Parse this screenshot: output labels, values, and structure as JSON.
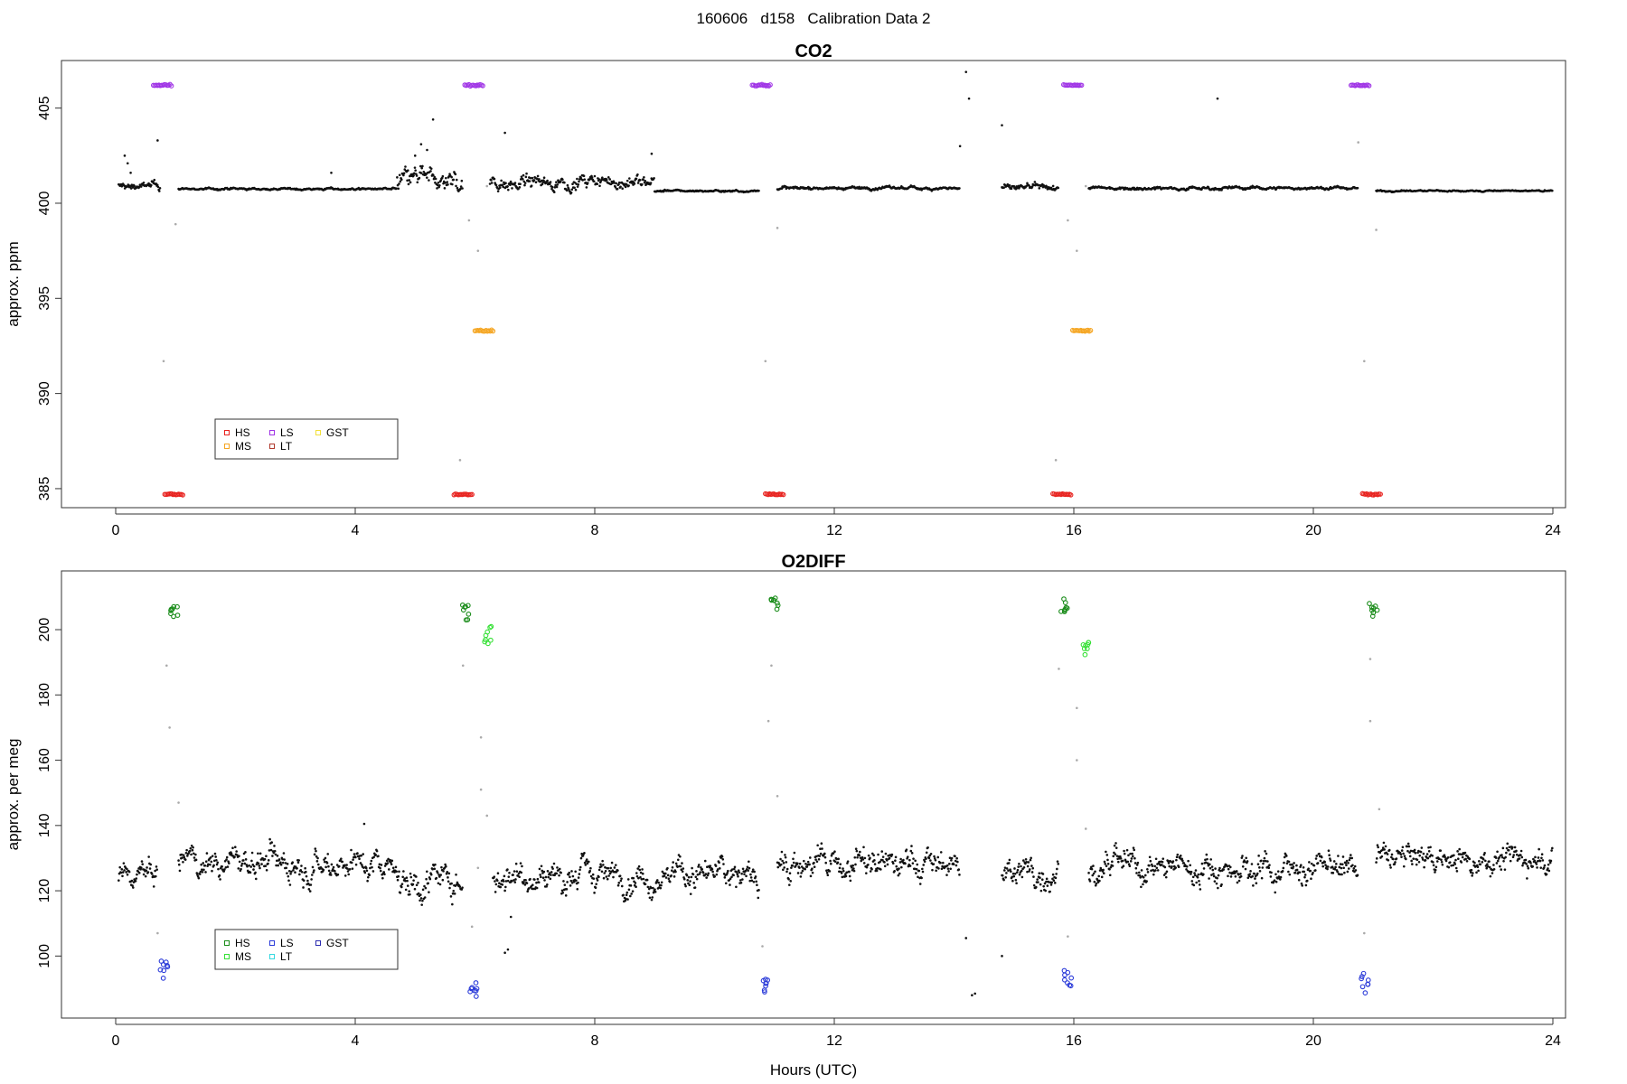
{
  "page": {
    "title": "160606   d158   Calibration Data 2"
  },
  "chart_data": [
    {
      "type": "scatter",
      "title": "CO2",
      "ylabel": "approx. ppm",
      "xlabel": "",
      "xlim": [
        0,
        24
      ],
      "ylim": [
        384,
        407.5
      ],
      "x_ticks": [
        0,
        4,
        8,
        12,
        16,
        20,
        24
      ],
      "y_ticks": [
        385,
        390,
        395,
        400,
        405
      ],
      "grid": false,
      "legend_placement": "bottom-left",
      "legend": [
        {
          "name": "HS",
          "color": "#e8231f"
        },
        {
          "name": "MS",
          "color": "#f5a623"
        },
        {
          "name": "LS",
          "color": "#a035e6"
        },
        {
          "name": "LT",
          "color": "#b03a2e"
        },
        {
          "name": "GST",
          "color": "#f2e03a"
        }
      ],
      "ambient": {
        "color": "#111111",
        "segments": [
          {
            "x": [
              0.05,
              0.75
            ],
            "y": 400.9,
            "noise": 0.2
          },
          {
            "x": [
              1.05,
              4.7
            ],
            "y": 400.75,
            "noise": 0.05
          },
          {
            "x": [
              4.7,
              5.8
            ],
            "y": 401.2,
            "noise": 0.6
          },
          {
            "x": [
              6.25,
              9.0
            ],
            "y": 401.1,
            "noise": 0.35
          },
          {
            "x": [
              9.0,
              10.75
            ],
            "y": 400.65,
            "noise": 0.05
          },
          {
            "x": [
              11.05,
              14.1
            ],
            "y": 400.8,
            "noise": 0.08
          },
          {
            "x": [
              14.8,
              15.75
            ],
            "y": 400.8,
            "noise": 0.15
          },
          {
            "x": [
              16.25,
              20.75
            ],
            "y": 400.8,
            "noise": 0.08
          },
          {
            "x": [
              21.05,
              24.0
            ],
            "y": 400.65,
            "noise": 0.04
          }
        ],
        "outliers": [
          [
            0.15,
            402.5
          ],
          [
            0.2,
            402.1
          ],
          [
            0.25,
            401.6
          ],
          [
            0.7,
            403.3
          ],
          [
            3.6,
            401.6
          ],
          [
            5.0,
            402.5
          ],
          [
            5.1,
            403.1
          ],
          [
            5.2,
            402.8
          ],
          [
            5.3,
            404.4
          ],
          [
            6.5,
            403.7
          ],
          [
            8.95,
            402.6
          ],
          [
            14.1,
            403.0
          ],
          [
            14.2,
            406.9
          ],
          [
            14.25,
            405.5
          ],
          [
            14.8,
            404.1
          ],
          [
            18.4,
            405.5
          ]
        ]
      },
      "transition": {
        "color": "#aaaaaa",
        "points": [
          [
            0.8,
            391.7
          ],
          [
            1.0,
            398.9
          ],
          [
            5.75,
            386.5
          ],
          [
            5.9,
            399.1
          ],
          [
            6.05,
            397.5
          ],
          [
            6.2,
            400.9
          ],
          [
            10.85,
            391.7
          ],
          [
            11.05,
            398.7
          ],
          [
            15.7,
            386.5
          ],
          [
            15.9,
            399.1
          ],
          [
            16.05,
            397.5
          ],
          [
            16.2,
            400.9
          ],
          [
            20.85,
            391.7
          ],
          [
            20.75,
            403.2
          ],
          [
            21.05,
            398.6
          ]
        ]
      },
      "cal_groups": [
        {
          "name": "LS",
          "color": "#a035e6",
          "clusters": [
            {
              "x": 0.78,
              "y": 406.2
            },
            {
              "x": 5.98,
              "y": 406.2
            },
            {
              "x": 10.78,
              "y": 406.2
            },
            {
              "x": 15.98,
              "y": 406.2
            },
            {
              "x": 20.78,
              "y": 406.2
            }
          ]
        },
        {
          "name": "HS",
          "color": "#e8231f",
          "clusters": [
            {
              "x": 0.97,
              "y": 384.7
            },
            {
              "x": 5.8,
              "y": 384.7
            },
            {
              "x": 11.0,
              "y": 384.7
            },
            {
              "x": 15.8,
              "y": 384.7
            },
            {
              "x": 20.97,
              "y": 384.7
            }
          ]
        },
        {
          "name": "MS",
          "color": "#f5a623",
          "clusters": [
            {
              "x": 6.15,
              "y": 393.3
            },
            {
              "x": 16.13,
              "y": 393.3
            }
          ]
        }
      ]
    },
    {
      "type": "scatter",
      "title": "O2DIFF",
      "ylabel": "approx. per meg",
      "xlabel": "Hours (UTC)",
      "xlim": [
        0,
        24
      ],
      "ylim": [
        81,
        218
      ],
      "x_ticks": [
        0,
        4,
        8,
        12,
        16,
        20,
        24
      ],
      "y_ticks": [
        100,
        120,
        140,
        160,
        180,
        200
      ],
      "grid": false,
      "legend_placement": "bottom-left",
      "legend": [
        {
          "name": "HS",
          "color": "#1a8c1a"
        },
        {
          "name": "MS",
          "color": "#35e035"
        },
        {
          "name": "LS",
          "color": "#2b3bd9"
        },
        {
          "name": "LT",
          "color": "#35d8e0"
        },
        {
          "name": "GST",
          "color": "#2b2bb0"
        }
      ],
      "ambient": {
        "color": "#111111",
        "segments": [
          {
            "x": [
              0.05,
              0.7
            ],
            "y": 125,
            "noise": 4
          },
          {
            "x": [
              1.05,
              4.7
            ],
            "y": 129,
            "noise": 4.5
          },
          {
            "x": [
              4.7,
              5.8
            ],
            "y": 123,
            "noise": 5
          },
          {
            "x": [
              6.3,
              10.75
            ],
            "y": 125,
            "noise": 4.5
          },
          {
            "x": [
              11.05,
              14.1
            ],
            "y": 128,
            "noise": 4.5
          },
          {
            "x": [
              14.8,
              15.75
            ],
            "y": 126,
            "noise": 4.5
          },
          {
            "x": [
              16.25,
              20.75
            ],
            "y": 127,
            "noise": 4.5
          },
          {
            "x": [
              21.05,
              24.0
            ],
            "y": 130,
            "noise": 4
          }
        ],
        "outliers": [
          [
            6.5,
            101
          ],
          [
            6.55,
            102
          ],
          [
            6.6,
            112
          ],
          [
            14.2,
            105.5
          ],
          [
            14.3,
            88
          ],
          [
            14.35,
            88.5
          ],
          [
            14.8,
            100
          ],
          [
            4.15,
            140.5
          ]
        ]
      },
      "transition": {
        "color": "#aaaaaa",
        "points": [
          [
            0.7,
            107
          ],
          [
            0.85,
            189
          ],
          [
            0.9,
            170
          ],
          [
            1.05,
            147
          ],
          [
            5.8,
            189
          ],
          [
            5.95,
            109
          ],
          [
            6.1,
            167
          ],
          [
            6.1,
            151
          ],
          [
            6.2,
            143
          ],
          [
            6.05,
            127
          ],
          [
            10.8,
            103
          ],
          [
            10.9,
            172
          ],
          [
            10.95,
            189
          ],
          [
            11.05,
            149
          ],
          [
            15.75,
            188
          ],
          [
            15.9,
            106
          ],
          [
            16.05,
            176
          ],
          [
            16.05,
            160
          ],
          [
            16.2,
            139
          ],
          [
            20.85,
            107
          ],
          [
            20.95,
            191
          ],
          [
            20.95,
            172
          ],
          [
            21.1,
            145
          ]
        ]
      },
      "cal_groups": [
        {
          "name": "LS",
          "color": "#2b3bd9",
          "clusters": [
            {
              "x": 0.8,
              "y": 96
            },
            {
              "x": 5.98,
              "y": 90
            },
            {
              "x": 10.85,
              "y": 91
            },
            {
              "x": 15.9,
              "y": 93
            },
            {
              "x": 20.85,
              "y": 93
            }
          ]
        },
        {
          "name": "HS",
          "color": "#1a8c1a",
          "clusters": [
            {
              "x": 0.97,
              "y": 206
            },
            {
              "x": 5.85,
              "y": 206
            },
            {
              "x": 11.0,
              "y": 208
            },
            {
              "x": 15.85,
              "y": 208
            },
            {
              "x": 21.0,
              "y": 207
            }
          ]
        },
        {
          "name": "MS",
          "color": "#35e035",
          "clusters": [
            {
              "x": 6.2,
              "y": 198
            },
            {
              "x": 16.2,
              "y": 195
            }
          ]
        }
      ]
    }
  ]
}
